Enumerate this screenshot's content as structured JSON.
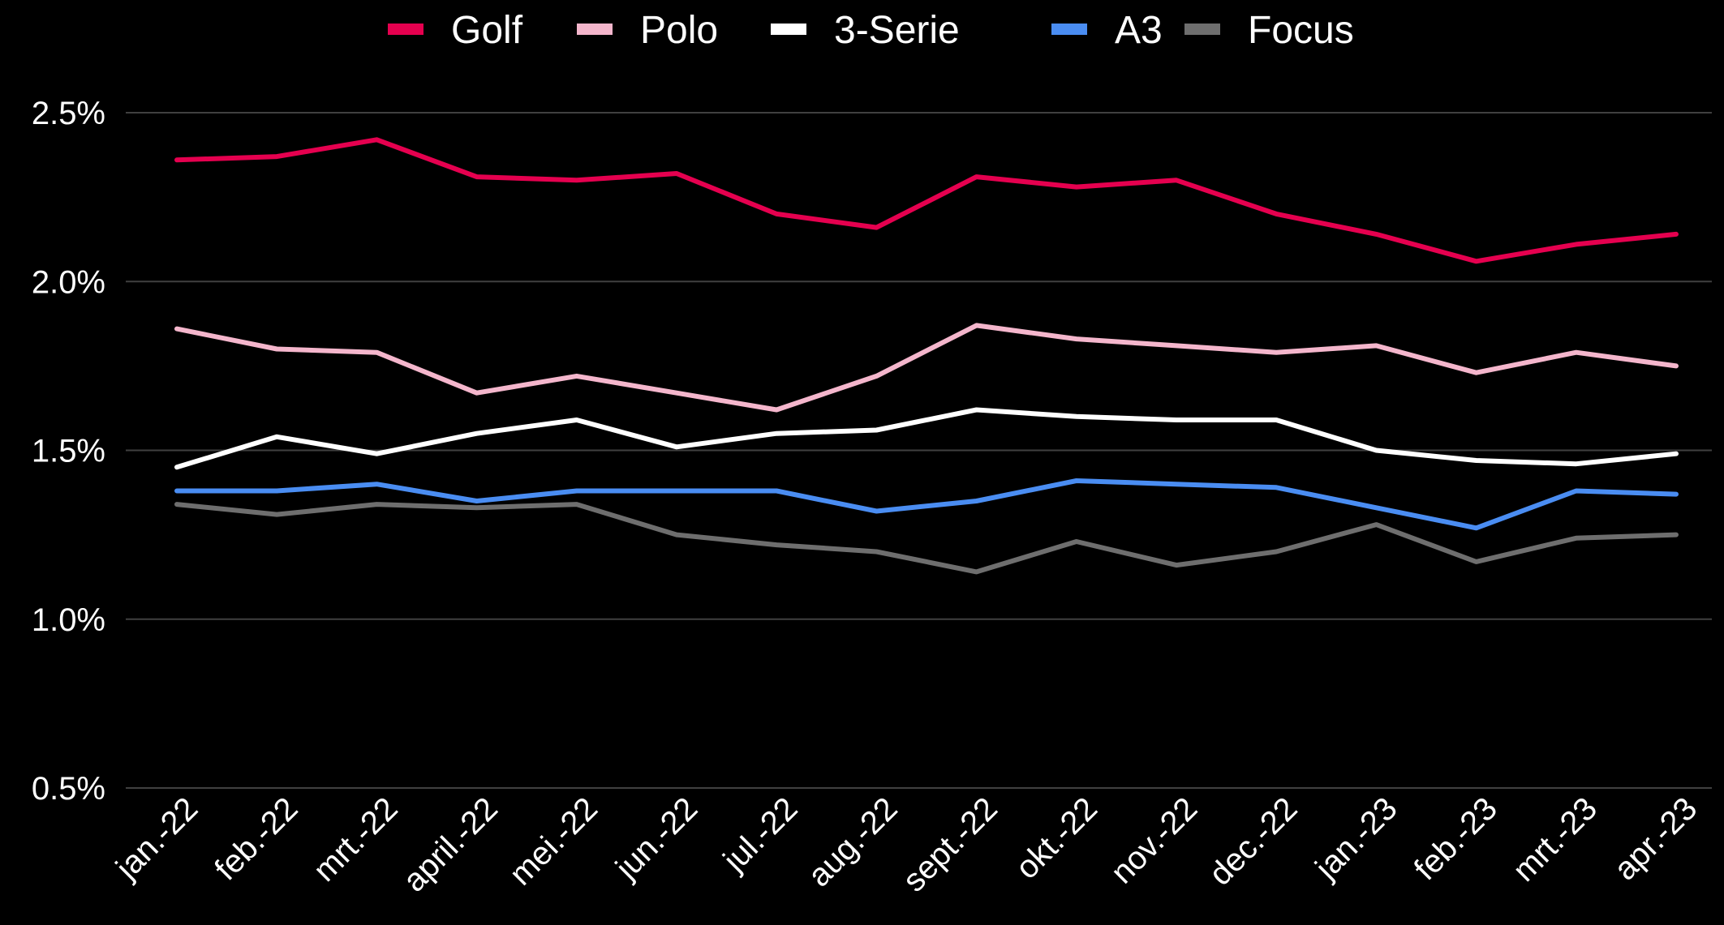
{
  "chart_data": {
    "type": "line",
    "title": "",
    "xlabel": "",
    "ylabel": "",
    "ylim": [
      0.5,
      2.5
    ],
    "yticks": [
      0.5,
      1.0,
      1.5,
      2.0,
      2.5
    ],
    "ytick_labels": [
      "0.5%",
      "1.0%",
      "1.5%",
      "2.0%",
      "2.5%"
    ],
    "grid": true,
    "legend_position": "top",
    "categories": [
      "jan.-22",
      "feb.-22",
      "mrt.-22",
      "april.-22",
      "mei.-22",
      "jun.-22",
      "jul.-22",
      "aug.-22",
      "sept.-22",
      "okt.-22",
      "nov.-22",
      "dec.-22",
      "jan.-23",
      "feb.-23",
      "mrt.-23",
      "apr.-23"
    ],
    "series": [
      {
        "name": "Golf",
        "color": "#e5004f",
        "values": [
          2.36,
          2.37,
          2.42,
          2.31,
          2.3,
          2.32,
          2.2,
          2.16,
          2.31,
          2.28,
          2.3,
          2.2,
          2.14,
          2.06,
          2.11,
          2.14
        ]
      },
      {
        "name": "Polo",
        "color": "#f4b6cc",
        "values": [
          1.86,
          1.8,
          1.79,
          1.67,
          1.72,
          1.67,
          1.62,
          1.72,
          1.87,
          1.83,
          1.81,
          1.79,
          1.81,
          1.73,
          1.79,
          1.75
        ]
      },
      {
        "name": "3-Serie",
        "color": "#ffffff",
        "values": [
          1.45,
          1.54,
          1.49,
          1.55,
          1.59,
          1.51,
          1.55,
          1.56,
          1.62,
          1.6,
          1.59,
          1.59,
          1.5,
          1.47,
          1.46,
          1.49
        ]
      },
      {
        "name": "A3",
        "color": "#4a8df2",
        "values": [
          1.38,
          1.38,
          1.4,
          1.35,
          1.38,
          1.38,
          1.38,
          1.32,
          1.35,
          1.41,
          1.4,
          1.39,
          1.33,
          1.27,
          1.38,
          1.37
        ]
      },
      {
        "name": "Focus",
        "color": "#6e6e6e",
        "values": [
          1.34,
          1.31,
          1.34,
          1.33,
          1.34,
          1.25,
          1.22,
          1.2,
          1.14,
          1.23,
          1.16,
          1.2,
          1.28,
          1.17,
          1.24,
          1.25
        ]
      }
    ]
  }
}
